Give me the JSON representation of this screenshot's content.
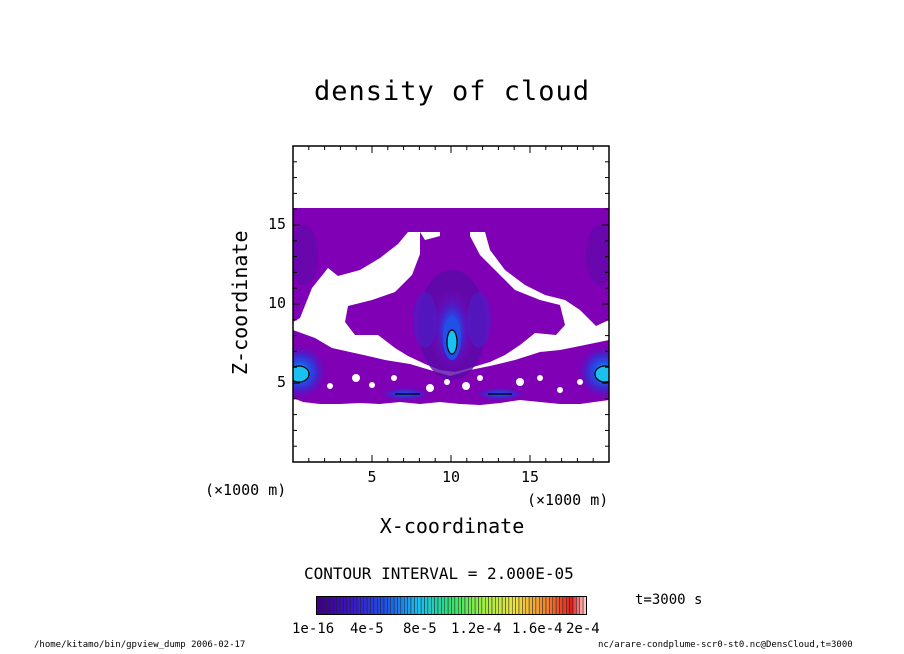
{
  "chart_data": {
    "type": "heatmap",
    "title": "density of cloud",
    "xlabel": "X-coordinate",
    "ylabel": "Z-coordinate",
    "x_unit": "(×1000 m)",
    "y_unit": "(×1000 m)",
    "xlim": [
      0,
      20
    ],
    "ylim": [
      0,
      20
    ],
    "x_ticks": [
      "5",
      "10",
      "15"
    ],
    "y_ticks": [
      "5",
      "10",
      "15"
    ],
    "contour_interval": "CONTOUR INTERVAL = 2.000E-05",
    "colorbar_labels": [
      "1e-16",
      "4e-5",
      "8e-5",
      "1.2e-4",
      "1.6e-4",
      "2e-4"
    ],
    "colorbar_range": [
      1e-16,
      0.0002
    ],
    "time_label": "t=3000 s",
    "features": [
      {
        "name": "central maximum",
        "x": 10,
        "z": 7.5
      },
      {
        "name": "left edge maximum",
        "x": 0.3,
        "z": 5.5
      },
      {
        "name": "right edge maximum",
        "x": 19.7,
        "z": 5.5
      },
      {
        "name": "low-level band",
        "x": 7,
        "z": 4.3
      },
      {
        "name": "low-level band",
        "x": 13,
        "z": 4.3
      }
    ]
  },
  "colors": {
    "base": "#7f00b5",
    "ramp": [
      "#3c0080",
      "#4a1fc8",
      "#2050e8",
      "#19c0f0",
      "#30e070",
      "#a0f040",
      "#f0e040",
      "#f08030",
      "#e02020",
      "#ffc8c8"
    ]
  },
  "footer": {
    "left": "/home/kitamo/bin/gpview_dump  2006-02-17",
    "right": "nc/arare-condplume-scr0-st0.nc@DensCloud,t=3000"
  }
}
